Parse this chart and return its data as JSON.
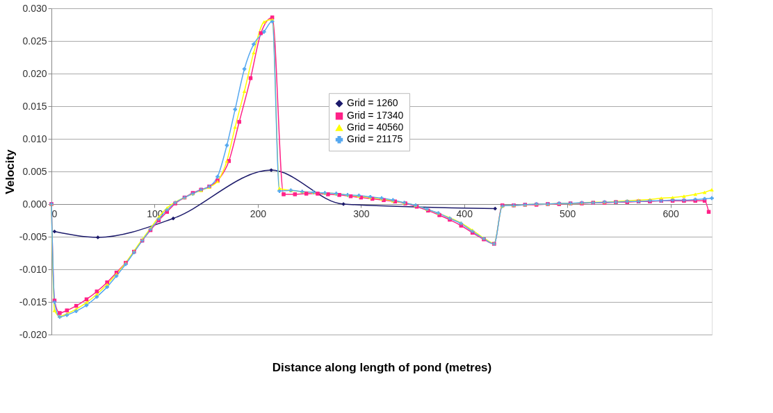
{
  "chart_data": {
    "type": "line",
    "xlabel": "Distance along length of pond (metres)",
    "ylabel": "Velocity",
    "xlim": [
      0,
      640
    ],
    "xticks": [
      0,
      100,
      200,
      300,
      400,
      500,
      600
    ],
    "ylim": [
      -0.02,
      0.03
    ],
    "yticks": [
      {
        "value": -0.02,
        "label": "-0.020"
      },
      {
        "value": -0.015,
        "label": "-0.015"
      },
      {
        "value": -0.01,
        "label": "-0.010"
      },
      {
        "value": -0.005,
        "label": "-0.005"
      },
      {
        "value": 0,
        "label": "0.000"
      },
      {
        "value": 0.005,
        "label": "0.005"
      },
      {
        "value": 0.01,
        "label": "0.010"
      },
      {
        "value": 0.015,
        "label": "0.015"
      },
      {
        "value": 0.02,
        "label": "0.020"
      },
      {
        "value": 0.025,
        "label": "0.025"
      },
      {
        "value": 0.03,
        "label": "0.030"
      }
    ],
    "grid": "y",
    "legend": "top right",
    "series": [
      {
        "name": "Grid = 1260",
        "color": "#1c1a6b",
        "marker": "diamond",
        "x": [
          3,
          45,
          118,
          213,
          283,
          430
        ],
        "values": [
          -0.0042,
          -0.0051,
          -0.0022,
          0.0052,
          0.0,
          -0.0007
        ]
      },
      {
        "name": "Grid = 17340",
        "color": "#ff2288",
        "marker": "square",
        "x": [
          0,
          3,
          8,
          15,
          24,
          34,
          44,
          54,
          63,
          72,
          80,
          88,
          96,
          104,
          112,
          120,
          129,
          137,
          145,
          153,
          161,
          172,
          182,
          193,
          203,
          214,
          225,
          236,
          247,
          258,
          268,
          279,
          290,
          300,
          311,
          322,
          333,
          343,
          354,
          365,
          376,
          386,
          397,
          408,
          419,
          429,
          437,
          448,
          459,
          470,
          481,
          492,
          503,
          514,
          525,
          536,
          547,
          558,
          569,
          580,
          591,
          602,
          613,
          624,
          633,
          637
        ],
        "values": [
          0,
          -0.0148,
          -0.0167,
          -0.0163,
          -0.0156,
          -0.0146,
          -0.0134,
          -0.012,
          -0.0105,
          -0.009,
          -0.0073,
          -0.0056,
          -0.004,
          -0.0025,
          -0.0012,
          0.0001,
          0.001,
          0.0017,
          0.0022,
          0.0027,
          0.0036,
          0.0066,
          0.0126,
          0.0193,
          0.0262,
          0.0286,
          0.0015,
          0.0015,
          0.0016,
          0.0016,
          0.0015,
          0.0014,
          0.0012,
          0.001,
          0.0008,
          0.0006,
          0.0004,
          0.0001,
          -0.0004,
          -0.001,
          -0.0017,
          -0.0024,
          -0.0033,
          -0.0044,
          -0.0054,
          -0.0061,
          -0.0002,
          -0.0002,
          -0.0001,
          -0.0001,
          0,
          0,
          0.0001,
          0.0001,
          0.0002,
          0.0002,
          0.0003,
          0.0003,
          0.0004,
          0.0004,
          0.0005,
          0.0005,
          0.0005,
          0.0005,
          0.0005,
          -0.0012
        ]
      },
      {
        "name": "Grid = 40560",
        "color": "#ffff00",
        "marker": "triangle",
        "x": [
          0,
          3,
          8,
          15,
          24,
          34,
          44,
          54,
          63,
          72,
          80,
          88,
          96,
          104,
          112,
          120,
          129,
          137,
          145,
          153,
          161,
          170,
          178,
          187,
          196,
          206,
          214,
          221,
          232,
          243,
          254,
          265,
          276,
          287,
          298,
          309,
          320,
          331,
          342,
          353,
          364,
          375,
          386,
          397,
          408,
          419,
          429,
          437,
          448,
          459,
          470,
          481,
          492,
          503,
          514,
          525,
          536,
          547,
          558,
          569,
          580,
          591,
          602,
          613,
          624,
          633,
          640
        ],
        "values": [
          0,
          -0.0163,
          -0.0172,
          -0.0168,
          -0.0161,
          -0.0151,
          -0.0138,
          -0.0123,
          -0.0107,
          -0.009,
          -0.0072,
          -0.0054,
          -0.0037,
          -0.002,
          -0.0006,
          0.0003,
          0.001,
          0.0016,
          0.0021,
          0.0026,
          0.0035,
          0.0066,
          0.0118,
          0.0173,
          0.0232,
          0.0279,
          0.0283,
          0.0024,
          0.0021,
          0.0019,
          0.0018,
          0.0017,
          0.0016,
          0.0014,
          0.0012,
          0.001,
          0.0008,
          0.0005,
          0.0002,
          -0.0002,
          -0.0008,
          -0.0014,
          -0.0021,
          -0.0029,
          -0.004,
          -0.0052,
          -0.006,
          -0.0003,
          -0.0002,
          -0.0001,
          0,
          0,
          0.0001,
          0.0001,
          0.0002,
          0.0003,
          0.0003,
          0.0004,
          0.0005,
          0.0006,
          0.0007,
          0.0009,
          0.001,
          0.0012,
          0.0015,
          0.0018,
          0.0022
        ]
      },
      {
        "name": "Grid = 21175",
        "color": "#55a8f0",
        "marker": "cross",
        "x": [
          0,
          3,
          8,
          15,
          24,
          34,
          44,
          54,
          63,
          72,
          80,
          88,
          96,
          104,
          112,
          120,
          129,
          137,
          145,
          153,
          161,
          170,
          178,
          187,
          196,
          206,
          214,
          221,
          232,
          243,
          254,
          265,
          276,
          287,
          298,
          309,
          320,
          331,
          342,
          353,
          364,
          375,
          386,
          397,
          408,
          419,
          429,
          437,
          448,
          459,
          470,
          481,
          492,
          503,
          514,
          525,
          536,
          547,
          558,
          569,
          580,
          591,
          602,
          613,
          624,
          633,
          640
        ],
        "values": [
          0,
          -0.015,
          -0.0173,
          -0.017,
          -0.0164,
          -0.0155,
          -0.0142,
          -0.0127,
          -0.011,
          -0.0092,
          -0.0074,
          -0.0056,
          -0.0039,
          -0.0023,
          -0.0009,
          0.0002,
          0.001,
          0.0016,
          0.0022,
          0.0027,
          0.0042,
          0.009,
          0.0145,
          0.0207,
          0.0245,
          0.0264,
          0.028,
          0.002,
          0.0021,
          0.0019,
          0.0018,
          0.0017,
          0.0016,
          0.0014,
          0.0013,
          0.0011,
          0.0009,
          0.0006,
          0.0002,
          -0.0002,
          -0.0008,
          -0.0014,
          -0.0022,
          -0.003,
          -0.0042,
          -0.0053,
          -0.0061,
          -0.0003,
          -0.0002,
          -0.0001,
          0,
          0,
          0.0001,
          0.0001,
          0.0002,
          0.0002,
          0.0003,
          0.0003,
          0.0004,
          0.0004,
          0.0005,
          0.0005,
          0.0006,
          0.0006,
          0.0007,
          0.0008,
          0.0009
        ]
      }
    ]
  }
}
